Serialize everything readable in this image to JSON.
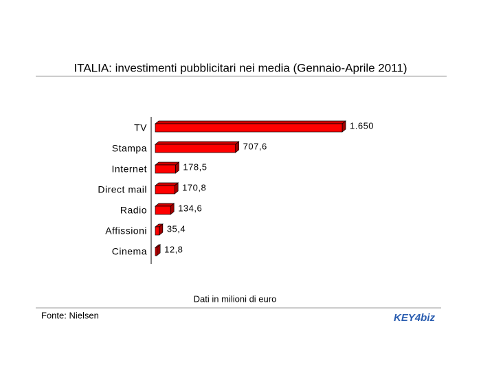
{
  "chart_data": {
    "type": "bar",
    "orientation": "horizontal",
    "title": "ITALIA: investimenti pubblicitari nei media (Gennaio-Aprile 2011)",
    "categories": [
      "TV",
      "Stampa",
      "Internet",
      "Direct mail",
      "Radio",
      "Affissioni",
      "Cinema"
    ],
    "values": [
      1650,
      707.6,
      178.5,
      170.8,
      134.6,
      35.4,
      12.8
    ],
    "value_labels": [
      "1.650",
      "707,6",
      "178,5",
      "170,8",
      "134,6",
      "35,4",
      "12,8"
    ],
    "color": "#ff0000",
    "note": "Dati in milioni di euro",
    "source": "Fonte: Nielsen",
    "logo": "KEY4biz"
  }
}
